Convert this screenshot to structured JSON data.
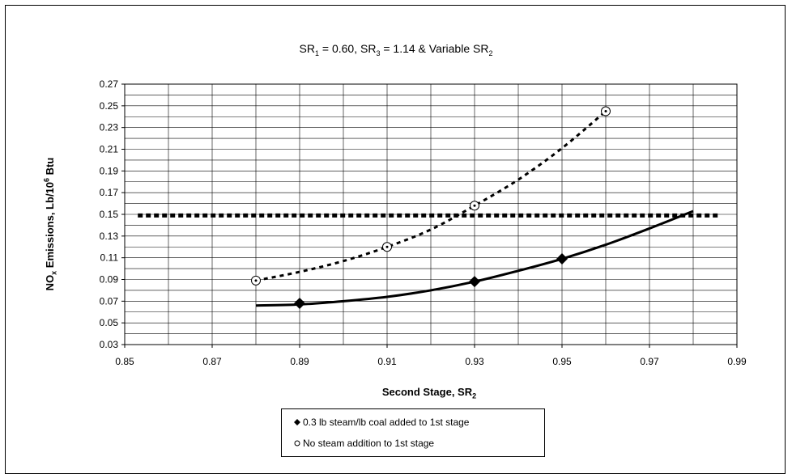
{
  "chart_data": {
    "type": "line",
    "title_parts": {
      "a": "SR",
      "a_sub": "1",
      "b": " = 0.60, SR",
      "b_sub": "3",
      "c": " = 1.14 & Variable SR",
      "c_sub": "2"
    },
    "ylabel_parts": {
      "a": "NO",
      "a_sub": "x",
      "b": " Emissions, Lb/10",
      "b_sup": "6",
      "c": " Btu"
    },
    "xlabel_parts": {
      "a": "Second Stage, SR",
      "a_sub": "2"
    },
    "xlim": [
      0.85,
      0.99
    ],
    "ylim": [
      0.03,
      0.27
    ],
    "x_ticks": [
      "0.85",
      "0.87",
      "0.89",
      "0.91",
      "0.93",
      "0.95",
      "0.97",
      "0.99"
    ],
    "y_ticks": [
      "0.03",
      "0.05",
      "0.07",
      "0.09",
      "0.11",
      "0.13",
      "0.15",
      "0.17",
      "0.19",
      "0.21",
      "0.23",
      "0.25",
      "0.27"
    ],
    "grid": true,
    "legend_position": "bottom",
    "series": [
      {
        "name": "0.3 lb steam/lb coal added to 1st stage",
        "marker": "diamond",
        "line_style": "solid",
        "color": "#000000",
        "points": [
          [
            0.89,
            0.068
          ],
          [
            0.93,
            0.088
          ],
          [
            0.95,
            0.109
          ]
        ],
        "curve": [
          [
            0.88,
            0.066
          ],
          [
            0.89,
            0.067
          ],
          [
            0.9,
            0.07
          ],
          [
            0.91,
            0.074
          ],
          [
            0.92,
            0.08
          ],
          [
            0.93,
            0.088
          ],
          [
            0.94,
            0.098
          ],
          [
            0.95,
            0.109
          ],
          [
            0.96,
            0.122
          ],
          [
            0.97,
            0.137
          ],
          [
            0.98,
            0.153
          ]
        ]
      },
      {
        "name": "No steam addition to 1st stage",
        "marker": "circle",
        "line_style": "dashed",
        "color": "#000000",
        "points": [
          [
            0.88,
            0.089
          ],
          [
            0.91,
            0.12
          ],
          [
            0.93,
            0.158
          ],
          [
            0.96,
            0.245
          ]
        ],
        "curve": [
          [
            0.88,
            0.089
          ],
          [
            0.89,
            0.097
          ],
          [
            0.9,
            0.107
          ],
          [
            0.91,
            0.12
          ],
          [
            0.92,
            0.136
          ],
          [
            0.93,
            0.158
          ],
          [
            0.94,
            0.182
          ],
          [
            0.95,
            0.211
          ],
          [
            0.96,
            0.245
          ]
        ]
      }
    ],
    "reference_lines": [
      {
        "orientation": "horizontal",
        "y": 0.149,
        "x_range": [
          0.853,
          0.986
        ],
        "style": "heavy-dashed",
        "color": "#000000"
      }
    ]
  }
}
